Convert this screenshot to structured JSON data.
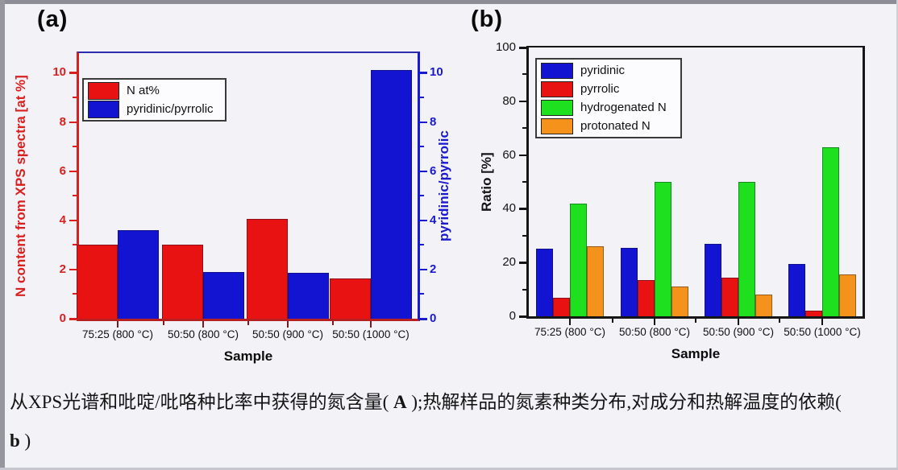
{
  "chart_data": [
    {
      "panel": "a",
      "panel_label": "(a)",
      "type": "bar",
      "categories": [
        "75:25 (800 °C)",
        "50:50 (800 °C)",
        "50:50 (900 °C)",
        "50:50 (1000 °C)"
      ],
      "xlabel": "Sample",
      "left_axis": {
        "label": "N content from XPS spectra [at %]",
        "color": "#da1f1f",
        "ticks": [
          0,
          2,
          4,
          6,
          8,
          10
        ],
        "minor_step": 1,
        "range": [
          0,
          10.8
        ]
      },
      "right_axis": {
        "label": "pyridinic/pyrrolic",
        "color": "#1a1acd",
        "ticks": [
          0,
          2,
          4,
          6,
          8,
          10
        ],
        "minor_step": 1,
        "range": [
          0,
          10.8
        ]
      },
      "series": [
        {
          "name": "N at%",
          "color": "#e81212",
          "values": [
            3.0,
            3.0,
            4.05,
            1.65
          ]
        },
        {
          "name": "pyridinic/pyrrolic",
          "color": "#1313d2",
          "values": [
            3.6,
            1.9,
            1.85,
            10.1
          ]
        }
      ],
      "legend_position": "top-left",
      "grid": false
    },
    {
      "panel": "b",
      "panel_label": "(b)",
      "type": "bar",
      "categories": [
        "75:25 (800 °C)",
        "50:50 (800 °C)",
        "50:50 (900 °C)",
        "50:50 (1000 °C)"
      ],
      "xlabel": "Sample",
      "left_axis": {
        "label": "Ratio [%]",
        "color": "#141414",
        "ticks": [
          0,
          20,
          40,
          60,
          80,
          100
        ],
        "minor_step": 10,
        "range": [
          0,
          100
        ]
      },
      "series": [
        {
          "name": "pyridinic",
          "color": "#1313d2",
          "values": [
            25,
            25.5,
            27,
            19.5
          ]
        },
        {
          "name": "pyrrolic",
          "color": "#e81212",
          "values": [
            7,
            13.5,
            14.5,
            2
          ]
        },
        {
          "name": "hydrogenated N",
          "color": "#1ee01e",
          "values": [
            42,
            50,
            50,
            63
          ]
        },
        {
          "name": "protonated N",
          "color": "#f5921b",
          "values": [
            26,
            11,
            8,
            15.5
          ]
        }
      ],
      "legend_position": "top-left",
      "grid": false
    }
  ],
  "caption": {
    "line1_pre": "从XPS光谱和吡啶/吡咯种比率中获得的氮含量( ",
    "line1_a": "A",
    "line1_post": " );热解样品的氮素种类分布,对成分和热解温度的依赖(",
    "line2_b": "b",
    "line2_post": " )"
  }
}
